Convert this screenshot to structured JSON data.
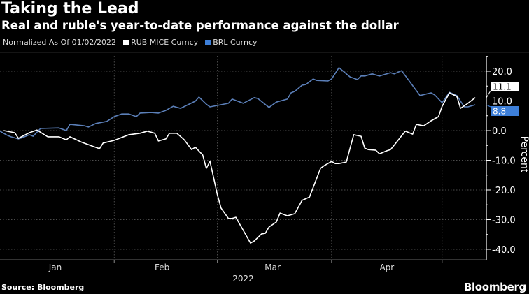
{
  "title": "Taking the Lead",
  "subtitle": "Real and ruble's year-to-date performance against the dollar",
  "legend": {
    "note": "Normalized As Of 01/02/2022",
    "items": [
      {
        "label": "RUB MICE Curncy",
        "color": "#ffffff"
      },
      {
        "label": "BRL Curncy",
        "color": "#3d7fd9"
      }
    ]
  },
  "source": "Source: Bloomberg",
  "logo": "Bloomberg",
  "chart_data": {
    "type": "line",
    "title": "Taking the Lead",
    "subtitle": "Real and ruble's year-to-date performance against the dollar",
    "xlabel": "2022",
    "ylabel": "Percent",
    "x_range": [
      "2022-01-01",
      "2022-05-13"
    ],
    "ylim": [
      -43,
      27
    ],
    "y_ticks": [
      20,
      10,
      0,
      -10,
      -20,
      -30,
      -40
    ],
    "y_tick_labels": [
      "20.0",
      "10.0",
      "0.0",
      "-10.0",
      "-20.0",
      "-30.0",
      "-40.0"
    ],
    "x_tick_labels": [
      "Jan",
      "Feb",
      "Mar",
      "Apr"
    ],
    "x_tick_positions": [
      "2022-01-16",
      "2022-02-14",
      "2022-03-16",
      "2022-04-16"
    ],
    "x_gridlines": [
      "2022-02-01",
      "2022-03-01",
      "2022-04-01",
      "2022-05-01"
    ],
    "grid": true,
    "y_axis_side": "right",
    "legend_position": "top-left",
    "series": [
      {
        "name": "RUB MICE Curncy",
        "color": "#ffffff",
        "last_value_label": "11.1",
        "points": [
          [
            "2022-01-02",
            0.0
          ],
          [
            "2022-01-05",
            -0.7
          ],
          [
            "2022-01-06",
            -2.6
          ],
          [
            "2022-01-09",
            -0.7
          ],
          [
            "2022-01-11",
            0.2
          ],
          [
            "2022-01-14",
            -2.1
          ],
          [
            "2022-01-17",
            -2.1
          ],
          [
            "2022-01-19",
            -3.1
          ],
          [
            "2022-01-20",
            -2.1
          ],
          [
            "2022-01-23",
            -3.8
          ],
          [
            "2022-01-26",
            -5.2
          ],
          [
            "2022-01-28",
            -6.1
          ],
          [
            "2022-01-29",
            -4.2
          ],
          [
            "2022-02-01",
            -3.3
          ],
          [
            "2022-02-05",
            -1.4
          ],
          [
            "2022-02-08",
            -0.9
          ],
          [
            "2022-02-10",
            -0.2
          ],
          [
            "2022-02-12",
            -0.9
          ],
          [
            "2022-02-13",
            -3.5
          ],
          [
            "2022-02-15",
            -2.8
          ],
          [
            "2022-02-16",
            -0.9
          ],
          [
            "2022-02-18",
            -0.9
          ],
          [
            "2022-02-20",
            -3.1
          ],
          [
            "2022-02-22",
            -6.4
          ],
          [
            "2022-02-23",
            -5.6
          ],
          [
            "2022-02-25",
            -8.2
          ],
          [
            "2022-02-26",
            -12.7
          ],
          [
            "2022-02-27",
            -10.4
          ],
          [
            "2022-03-01",
            -21.6
          ],
          [
            "2022-03-02",
            -26.1
          ],
          [
            "2022-03-04",
            -29.6
          ],
          [
            "2022-03-05",
            -29.6
          ],
          [
            "2022-03-06",
            -29.2
          ],
          [
            "2022-03-10",
            -37.9
          ],
          [
            "2022-03-11",
            -37.2
          ],
          [
            "2022-03-13",
            -34.8
          ],
          [
            "2022-03-14",
            -34.6
          ],
          [
            "2022-03-15",
            -32.5
          ],
          [
            "2022-03-17",
            -30.8
          ],
          [
            "2022-03-18",
            -27.8
          ],
          [
            "2022-03-20",
            -28.7
          ],
          [
            "2022-03-22",
            -28.0
          ],
          [
            "2022-03-24",
            -23.5
          ],
          [
            "2022-03-26",
            -22.4
          ],
          [
            "2022-03-29",
            -12.7
          ],
          [
            "2022-03-30",
            -11.8
          ],
          [
            "2022-04-01",
            -10.4
          ],
          [
            "2022-04-02",
            -11.1
          ],
          [
            "2022-04-03",
            -11.1
          ],
          [
            "2022-04-05",
            -10.6
          ],
          [
            "2022-04-07",
            -1.4
          ],
          [
            "2022-04-09",
            -1.9
          ],
          [
            "2022-04-10",
            -5.9
          ],
          [
            "2022-04-11",
            -6.4
          ],
          [
            "2022-04-13",
            -6.6
          ],
          [
            "2022-04-14",
            -7.8
          ],
          [
            "2022-04-16",
            -6.8
          ],
          [
            "2022-04-17",
            -6.4
          ],
          [
            "2022-04-18",
            -4.9
          ],
          [
            "2022-04-21",
            -0.2
          ],
          [
            "2022-04-23",
            -1.2
          ],
          [
            "2022-04-24",
            2.1
          ],
          [
            "2022-04-26",
            1.6
          ],
          [
            "2022-04-28",
            3.3
          ],
          [
            "2022-04-30",
            4.7
          ],
          [
            "2022-05-01",
            8.2
          ],
          [
            "2022-05-03",
            12.7
          ],
          [
            "2022-05-05",
            11.5
          ],
          [
            "2022-05-06",
            7.5
          ],
          [
            "2022-05-08",
            9.2
          ],
          [
            "2022-05-10",
            11.1
          ]
        ]
      },
      {
        "name": "BRL Curncy",
        "color": "#3d7fd9",
        "last_value_label": "8.8",
        "points": [
          [
            "2022-01-01",
            -0.2
          ],
          [
            "2022-01-03",
            -1.6
          ],
          [
            "2022-01-04",
            -2.1
          ],
          [
            "2022-01-06",
            -2.8
          ],
          [
            "2022-01-07",
            -2.4
          ],
          [
            "2022-01-09",
            -1.4
          ],
          [
            "2022-01-10",
            -1.9
          ],
          [
            "2022-01-12",
            0.7
          ],
          [
            "2022-01-17",
            0.9
          ],
          [
            "2022-01-19",
            0.0
          ],
          [
            "2022-01-20",
            2.1
          ],
          [
            "2022-01-24",
            1.6
          ],
          [
            "2022-01-25",
            1.2
          ],
          [
            "2022-01-27",
            2.4
          ],
          [
            "2022-01-30",
            3.1
          ],
          [
            "2022-02-01",
            4.7
          ],
          [
            "2022-02-03",
            5.6
          ],
          [
            "2022-02-05",
            5.6
          ],
          [
            "2022-02-07",
            4.7
          ],
          [
            "2022-02-08",
            5.9
          ],
          [
            "2022-02-11",
            6.1
          ],
          [
            "2022-02-13",
            5.9
          ],
          [
            "2022-02-15",
            6.8
          ],
          [
            "2022-02-17",
            8.2
          ],
          [
            "2022-02-19",
            7.5
          ],
          [
            "2022-02-21",
            8.7
          ],
          [
            "2022-02-23",
            9.9
          ],
          [
            "2022-02-24",
            11.3
          ],
          [
            "2022-02-26",
            8.9
          ],
          [
            "2022-02-27",
            8.0
          ],
          [
            "2022-03-04",
            9.2
          ],
          [
            "2022-03-05",
            10.6
          ],
          [
            "2022-03-08",
            9.2
          ],
          [
            "2022-03-11",
            11.1
          ],
          [
            "2022-03-12",
            10.8
          ],
          [
            "2022-03-15",
            7.8
          ],
          [
            "2022-03-17",
            9.6
          ],
          [
            "2022-03-20",
            10.6
          ],
          [
            "2022-03-21",
            12.7
          ],
          [
            "2022-03-22",
            13.2
          ],
          [
            "2022-03-24",
            15.3
          ],
          [
            "2022-03-25",
            15.5
          ],
          [
            "2022-03-27",
            17.4
          ],
          [
            "2022-03-28",
            16.9
          ],
          [
            "2022-03-31",
            16.7
          ],
          [
            "2022-04-01",
            17.4
          ],
          [
            "2022-04-03",
            21.2
          ],
          [
            "2022-04-06",
            18.1
          ],
          [
            "2022-04-08",
            17.2
          ],
          [
            "2022-04-09",
            18.4
          ],
          [
            "2022-04-10",
            18.4
          ],
          [
            "2022-04-12",
            19.1
          ],
          [
            "2022-04-14",
            18.4
          ],
          [
            "2022-04-17",
            19.5
          ],
          [
            "2022-04-18",
            19.1
          ],
          [
            "2022-04-20",
            20.2
          ],
          [
            "2022-04-25",
            11.8
          ],
          [
            "2022-04-28",
            12.7
          ],
          [
            "2022-04-29",
            12.0
          ],
          [
            "2022-05-01",
            9.4
          ],
          [
            "2022-05-03",
            12.9
          ],
          [
            "2022-05-05",
            11.8
          ],
          [
            "2022-05-07",
            8.0
          ],
          [
            "2022-05-08",
            8.0
          ],
          [
            "2022-05-10",
            8.7
          ]
        ]
      }
    ]
  }
}
